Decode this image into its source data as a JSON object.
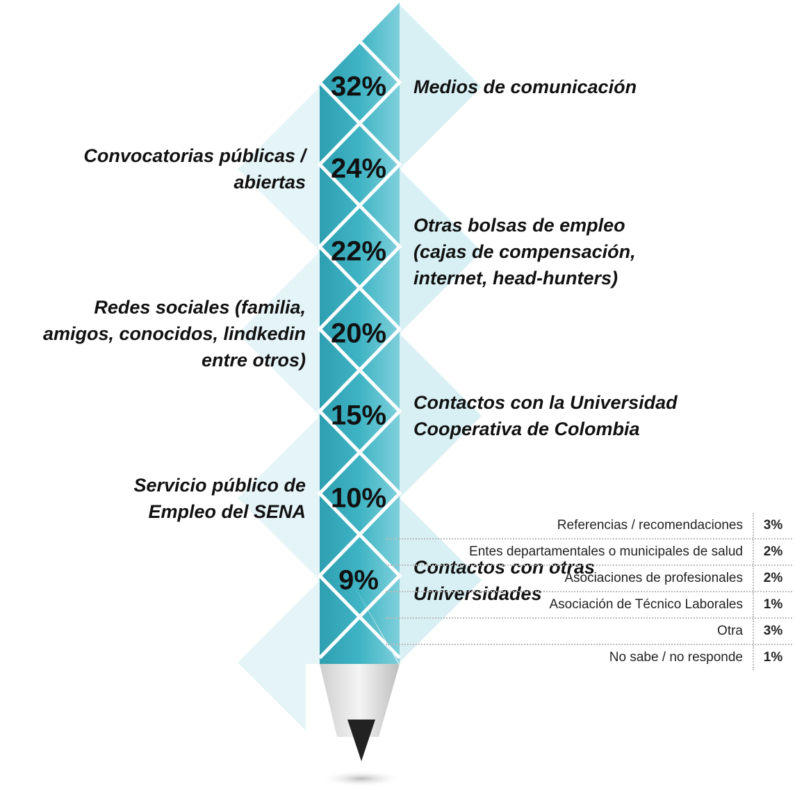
{
  "items": [
    {
      "percent": "32%",
      "label": [
        "Medios de comunicación"
      ]
    },
    {
      "percent": "24%",
      "label": [
        "Convocatorias públicas /",
        "abiertas"
      ]
    },
    {
      "percent": "22%",
      "label": [
        "Otras bolsas de empleo",
        "(cajas de compensación,",
        "internet, head-hunters)"
      ]
    },
    {
      "percent": "20%",
      "label": [
        "Redes sociales (familia,",
        "amigos, conocidos, lindkedin",
        "entre otros)"
      ]
    },
    {
      "percent": "15%",
      "label": [
        "Contactos con la Universidad",
        "Cooperativa de Colombia"
      ]
    },
    {
      "percent": "10%",
      "label": [
        "Servicio público de",
        "Empleo del SENA"
      ]
    },
    {
      "percent": "9%",
      "label": [
        "Contactos con otras",
        "Universidades"
      ]
    }
  ],
  "table": {
    "rows": [
      [
        "Referencias / recomendaciones",
        "3%"
      ],
      [
        "Entes departamentales o municipales de salud",
        "2%"
      ],
      [
        "Asociaciones de profesionales",
        "2%"
      ],
      [
        "Asociación de Técnico Laborales",
        "1%"
      ],
      [
        "Otra",
        "3%"
      ],
      [
        "No sabe / no responde",
        "1%"
      ]
    ]
  }
}
